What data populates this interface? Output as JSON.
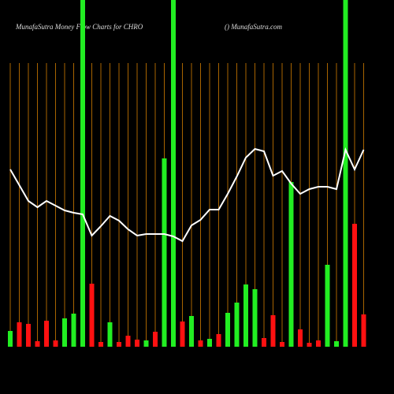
{
  "chart_data": {
    "type": "bar-line",
    "title": "MunafaSutra  Money Flow  Charts for CHRO",
    "subtitle": "() MunafaSutra.com",
    "categories": [
      null,
      null,
      null,
      null,
      null,
      null,
      null,
      null,
      null,
      null,
      null,
      null,
      null,
      null,
      null,
      null,
      null,
      null,
      null,
      null,
      null,
      null,
      null,
      null,
      null,
      null,
      null,
      null,
      null,
      null,
      null,
      null,
      null,
      null,
      null,
      null,
      null,
      null,
      null,
      null
    ],
    "ylim": [
      0,
      440
    ],
    "bars": {
      "values": [
        20,
        31,
        29,
        7,
        33,
        8,
        36,
        42,
        440,
        80,
        6,
        31,
        6,
        14,
        9,
        8,
        19,
        239,
        440,
        32,
        39,
        8,
        10,
        16,
        43,
        56,
        79,
        73,
        11,
        40,
        6,
        209,
        22,
        5,
        8,
        104,
        7,
        440,
        156,
        41
      ],
      "colors": [
        "#22ee22",
        "#ff1111",
        "#ff1111",
        "#ff1111",
        "#ff1111",
        "#ff1111",
        "#22ee22",
        "#22ee22",
        "#22ee22",
        "#ff1111",
        "#ff1111",
        "#22ee22",
        "#ff1111",
        "#ff1111",
        "#ff1111",
        "#22ee22",
        "#ff1111",
        "#22ee22",
        "#22ee22",
        "#ff1111",
        "#22ee22",
        "#ff1111",
        "#22ee22",
        "#ff1111",
        "#22ee22",
        "#22ee22",
        "#22ee22",
        "#22ee22",
        "#ff1111",
        "#ff1111",
        "#ff1111",
        "#22ee22",
        "#ff1111",
        "#ff1111",
        "#ff1111",
        "#22ee22",
        "#22ee22",
        "#22ee22",
        "#ff1111",
        "#ff1111"
      ]
    },
    "line": {
      "color": "#ffffff",
      "values": [
        225,
        205,
        185,
        177,
        185,
        179,
        173,
        170,
        168,
        141,
        153,
        166,
        160,
        149,
        141,
        143,
        143,
        143,
        140,
        134,
        154,
        161,
        174,
        174,
        194,
        216,
        240,
        251,
        248,
        217,
        223,
        207,
        194,
        200,
        203,
        203,
        200,
        250,
        225,
        250
      ]
    },
    "gridline_color": "#a86400"
  }
}
